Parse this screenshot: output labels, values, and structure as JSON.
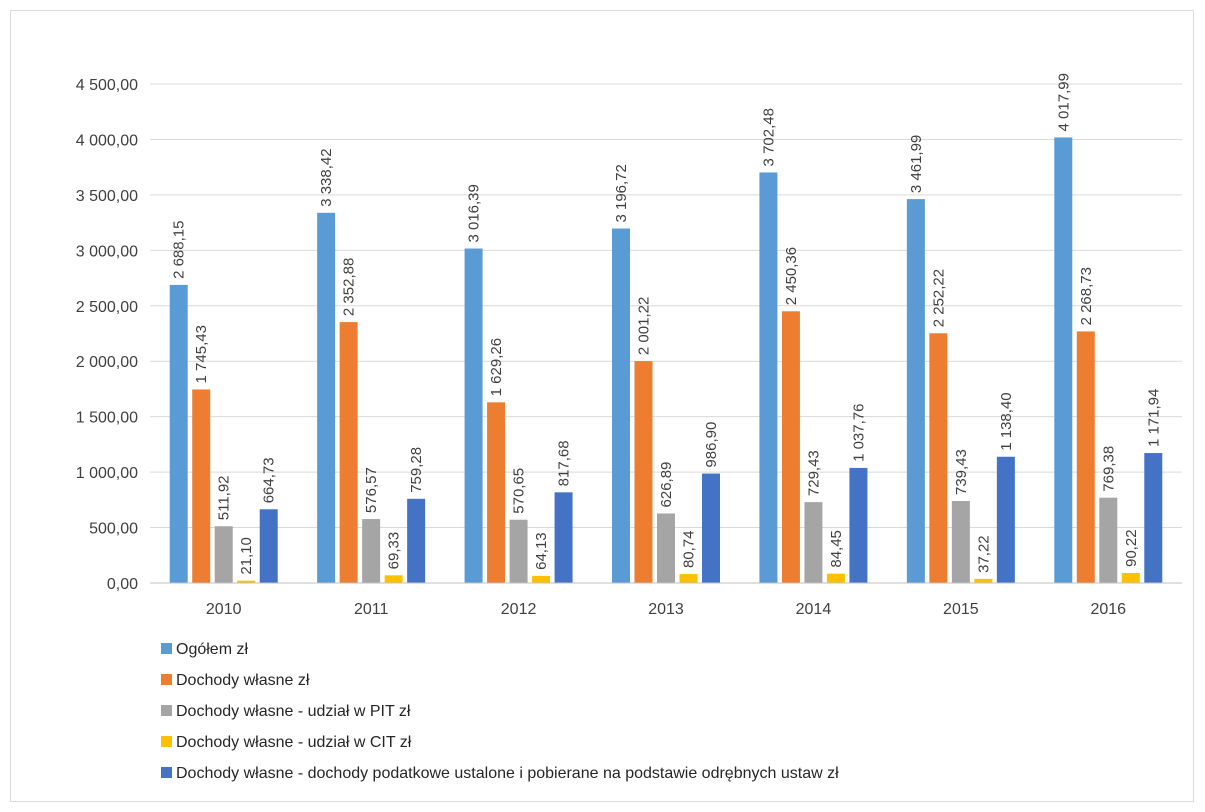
{
  "chart_data": {
    "type": "bar",
    "categories": [
      "2010",
      "2011",
      "2012",
      "2013",
      "2014",
      "2015",
      "2016"
    ],
    "series": [
      {
        "name": "Ogółem zł",
        "color": "#5B9BD5",
        "values": [
          2688.15,
          3338.42,
          3016.39,
          3196.72,
          3702.48,
          3461.99,
          4017.99
        ],
        "labels": [
          "2 688,15",
          "3 338,42",
          "3 016,39",
          "3 196,72",
          "3 702,48",
          "3 461,99",
          "4 017,99"
        ]
      },
      {
        "name": "Dochody własne zł",
        "color": "#ED7D31",
        "values": [
          1745.43,
          2352.88,
          1629.26,
          2001.22,
          2450.36,
          2252.22,
          2268.73
        ],
        "labels": [
          "1 745,43",
          "2 352,88",
          "1 629,26",
          "2 001,22",
          "2 450,36",
          "2 252,22",
          "2 268,73"
        ]
      },
      {
        "name": "Dochody własne - udział w PIT zł",
        "color": "#A5A5A5",
        "values": [
          511.92,
          576.57,
          570.65,
          626.89,
          729.43,
          739.43,
          769.38
        ],
        "labels": [
          "511,92",
          "576,57",
          "570,65",
          "626,89",
          "729,43",
          "739,43",
          "769,38"
        ]
      },
      {
        "name": "Dochody własne - udział w CIT zł",
        "color": "#FFC000",
        "values": [
          21.1,
          69.33,
          64.13,
          80.74,
          84.45,
          37.22,
          90.22
        ],
        "labels": [
          "21,10",
          "69,33",
          "64,13",
          "80,74",
          "84,45",
          "37,22",
          "90,22"
        ]
      },
      {
        "name": "Dochody własne - dochody podatkowe ustalone i pobierane na podstawie odrębnych ustaw zł",
        "color": "#4472C4",
        "values": [
          664.73,
          759.28,
          817.68,
          986.9,
          1037.76,
          1138.4,
          1171.94
        ],
        "labels": [
          "664,73",
          "759,28",
          "817,68",
          "986,90",
          "1 037,76",
          "1 138,40",
          "1 171,94"
        ]
      }
    ],
    "y_ticks": [
      0,
      500,
      1000,
      1500,
      2000,
      2500,
      3000,
      3500,
      4000,
      4500
    ],
    "y_tick_labels": [
      "0,00",
      "500,00",
      "1 000,00",
      "1 500,00",
      "2 000,00",
      "2 500,00",
      "3 000,00",
      "3 500,00",
      "4 000,00",
      "4 500,00"
    ],
    "ylim": [
      0,
      4500
    ],
    "grid": true,
    "legend_position": "bottom-left",
    "title": "",
    "xlabel": "",
    "ylabel": ""
  }
}
